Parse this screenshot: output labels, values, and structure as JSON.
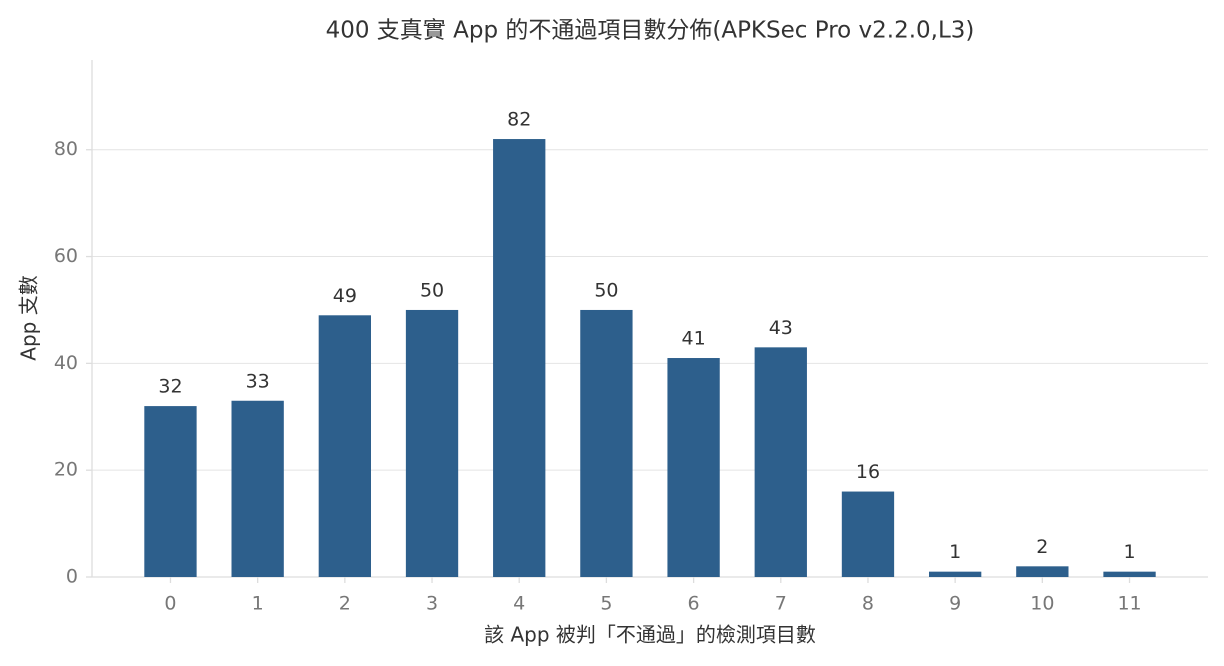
{
  "chart_data": {
    "type": "bar",
    "title": "400 支真實 App 的不通過項目數分佈(APKSec Pro v2.2.0,L3)",
    "x_label": "該 App 被判「不通過」的檢測項目數",
    "y_label": "App 支數",
    "categories": [
      "0",
      "1",
      "2",
      "3",
      "4",
      "5",
      "6",
      "7",
      "8",
      "9",
      "10",
      "11"
    ],
    "values": [
      32,
      33,
      49,
      50,
      82,
      50,
      41,
      43,
      16,
      1,
      2,
      1
    ],
    "color": "#2d5f8c",
    "ylim": [
      0,
      96.8
    ],
    "yticks": [
      0,
      20,
      40,
      60,
      80
    ],
    "grid": true
  }
}
